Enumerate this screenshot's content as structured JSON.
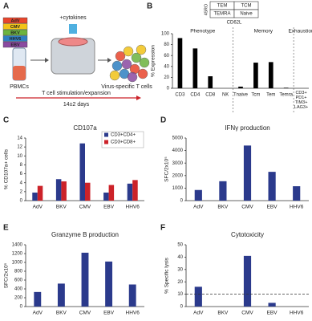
{
  "diagram": {
    "panel": "A",
    "viruses": [
      {
        "label": "AdV",
        "color": "#e8452c"
      },
      {
        "label": "CMV",
        "color": "#f2c318"
      },
      {
        "label": "BKV",
        "color": "#6cb33f"
      },
      {
        "label": "HHV6",
        "color": "#2f7fc1"
      },
      {
        "label": "EBV",
        "color": "#8a4aa0"
      }
    ],
    "cytokines": "+cytokines",
    "pbmc": "PBMCs",
    "process": "T cell stimulation/expansion",
    "duration": "14±2 days",
    "output": "Virus-specific T cells"
  },
  "chart_data": [
    {
      "type": "bar",
      "panel": "B",
      "y_label": "% Expression",
      "categories": [
        "CD3",
        "CD4",
        "CD8",
        "NK",
        "Tnaive",
        "Tcm",
        "Tem",
        "Temra",
        "CD3+ PD1+ TIM3+ LAG3+"
      ],
      "values": [
        92,
        73,
        22,
        0,
        3,
        47,
        48,
        1,
        0
      ],
      "color": "#000000",
      "ylim": [
        0,
        100
      ],
      "yticks": [
        0,
        20,
        40,
        60,
        80,
        100
      ],
      "groups": [
        {
          "label": "Phenotype",
          "size": 4
        },
        {
          "label": "Memory",
          "size": 4
        },
        {
          "label": "Exhaustion",
          "size": 1
        }
      ],
      "inset": {
        "cells": [
          [
            "TEM",
            "TCM"
          ],
          [
            "TEMRA",
            "Naive"
          ]
        ],
        "y_label": "45RO",
        "x_label": "CD62L"
      }
    },
    {
      "type": "bar",
      "panel": "C",
      "title": "CD107a",
      "y_label": "% CD107a+ cells",
      "categories": [
        "AdV",
        "BKV",
        "CMV",
        "EBV",
        "HHV6"
      ],
      "series": [
        {
          "name": "CD3+CD4+",
          "color": "#2b3a8c",
          "values": [
            1.8,
            4.8,
            12.8,
            1.8,
            3.8
          ]
        },
        {
          "name": "CD3+CD8+",
          "color": "#cc2229",
          "values": [
            3.3,
            4.3,
            4.0,
            3.5,
            4.6
          ]
        }
      ],
      "ylim": [
        0,
        14
      ],
      "yticks": [
        0,
        2,
        4,
        6,
        8,
        10,
        12,
        14
      ],
      "legend": "upper right"
    },
    {
      "type": "bar",
      "panel": "D",
      "title": "IFNγ production",
      "y_label": "SFC/2x10⁵",
      "categories": [
        "AdV",
        "BKV",
        "CMV",
        "EBV",
        "HHV6"
      ],
      "values": [
        850,
        1550,
        4400,
        2300,
        1150
      ],
      "color": "#2b3a8c",
      "ylim": [
        0,
        5000
      ],
      "yticks": [
        0,
        1000,
        2000,
        3000,
        4000,
        5000
      ]
    },
    {
      "type": "bar",
      "panel": "E",
      "title": "Granzyme B production",
      "y_label": "SFC/2x10⁵",
      "categories": [
        "AdV",
        "BKV",
        "CMV",
        "EBV",
        "HHV6"
      ],
      "values": [
        330,
        520,
        1220,
        1020,
        500
      ],
      "color": "#2b3a8c",
      "ylim": [
        0,
        1400
      ],
      "yticks": [
        0,
        200,
        400,
        600,
        800,
        1000,
        1200,
        1400
      ]
    },
    {
      "type": "bar",
      "panel": "F",
      "title": "Cytotoxicity",
      "y_label": "% Specific lysis",
      "categories": [
        "AdV",
        "BKV",
        "CMV",
        "EBV",
        "HHV6"
      ],
      "values": [
        16,
        0,
        41,
        3,
        0
      ],
      "color": "#2b3a8c",
      "ylim": [
        0,
        50
      ],
      "yticks": [
        0,
        10,
        20,
        30,
        40,
        50
      ],
      "threshold": 10
    }
  ]
}
